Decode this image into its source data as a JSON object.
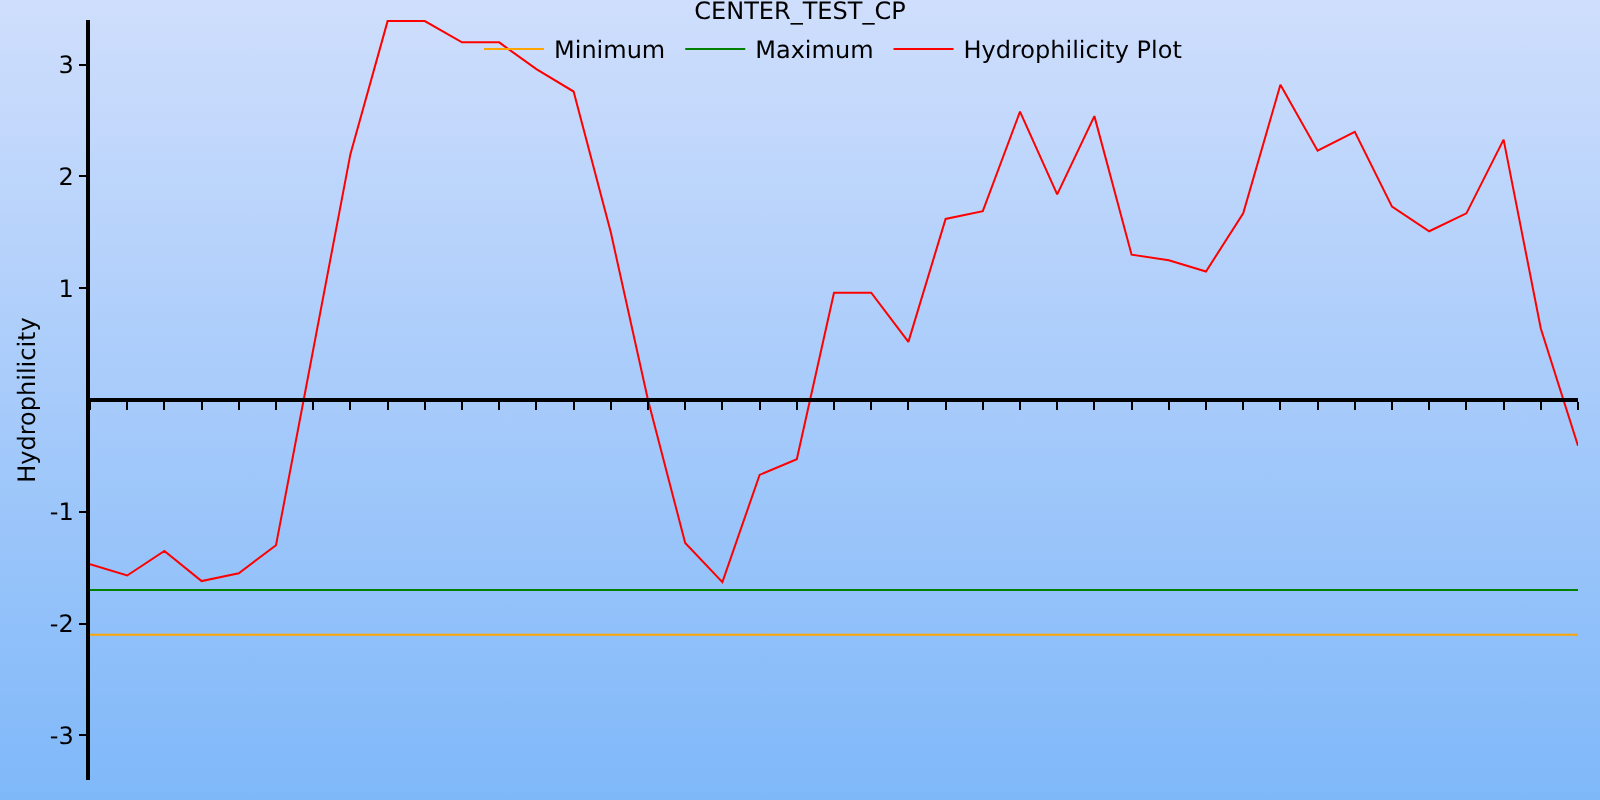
{
  "chart_data": {
    "type": "line",
    "title": "CENTER_TEST_CP",
    "ylabel": "Hydrophilicity",
    "categories": [
      null,
      null,
      null,
      null,
      null,
      null,
      null,
      null,
      null,
      null,
      null,
      null,
      null,
      null,
      null,
      null,
      null,
      null,
      null,
      null,
      null,
      null,
      null,
      null,
      null,
      null,
      null,
      null,
      null,
      null,
      null,
      null,
      null,
      null,
      null,
      null,
      null,
      null,
      null,
      null,
      null
    ],
    "series": [
      {
        "name": "Minimum",
        "color": "#ffa500",
        "values": [
          -2.1,
          -2.1,
          -2.1,
          -2.1,
          -2.1,
          -2.1,
          -2.1,
          -2.1,
          -2.1,
          -2.1,
          -2.1,
          -2.1,
          -2.1,
          -2.1,
          -2.1,
          -2.1,
          -2.1,
          -2.1,
          -2.1,
          -2.1,
          -2.1,
          -2.1,
          -2.1,
          -2.1,
          -2.1,
          -2.1,
          -2.1,
          -2.1,
          -2.1,
          -2.1,
          -2.1,
          -2.1,
          -2.1,
          -2.1,
          -2.1,
          -2.1,
          -2.1,
          -2.1,
          -2.1,
          -2.1,
          -2.1
        ]
      },
      {
        "name": "Maximum",
        "color": "#008000",
        "values": [
          -1.7,
          -1.7,
          -1.7,
          -1.7,
          -1.7,
          -1.7,
          -1.7,
          -1.7,
          -1.7,
          -1.7,
          -1.7,
          -1.7,
          -1.7,
          -1.7,
          -1.7,
          -1.7,
          -1.7,
          -1.7,
          -1.7,
          -1.7,
          -1.7,
          -1.7,
          -1.7,
          -1.7,
          -1.7,
          -1.7,
          -1.7,
          -1.7,
          -1.7,
          -1.7,
          -1.7,
          -1.7,
          -1.7,
          -1.7,
          -1.7,
          -1.7,
          -1.7,
          -1.7,
          -1.7,
          -1.7,
          -1.7
        ]
      },
      {
        "name": "Hydrophilicity Plot",
        "color": "#ff0000",
        "values": [
          -1.47,
          -1.57,
          -1.35,
          -1.62,
          -1.55,
          -1.3,
          0.45,
          2.2,
          3.39,
          3.39,
          3.2,
          3.2,
          2.96,
          2.76,
          1.5,
          0,
          -1.28,
          -1.63,
          -0.67,
          -0.53,
          0.96,
          0.96,
          0.52,
          1.62,
          1.69,
          2.58,
          1.84,
          2.54,
          1.3,
          1.25,
          1.15,
          1.67,
          2.82,
          2.23,
          2.4,
          1.73,
          1.51,
          1.67,
          2.33,
          0.64,
          -0.41
        ]
      }
    ],
    "ylim": [
      -3.4,
      3.4
    ],
    "yticks": [
      -3,
      -2,
      -1,
      1,
      2,
      3
    ],
    "grid": false,
    "legend": "top",
    "marker": "none",
    "line_style": "solid"
  }
}
